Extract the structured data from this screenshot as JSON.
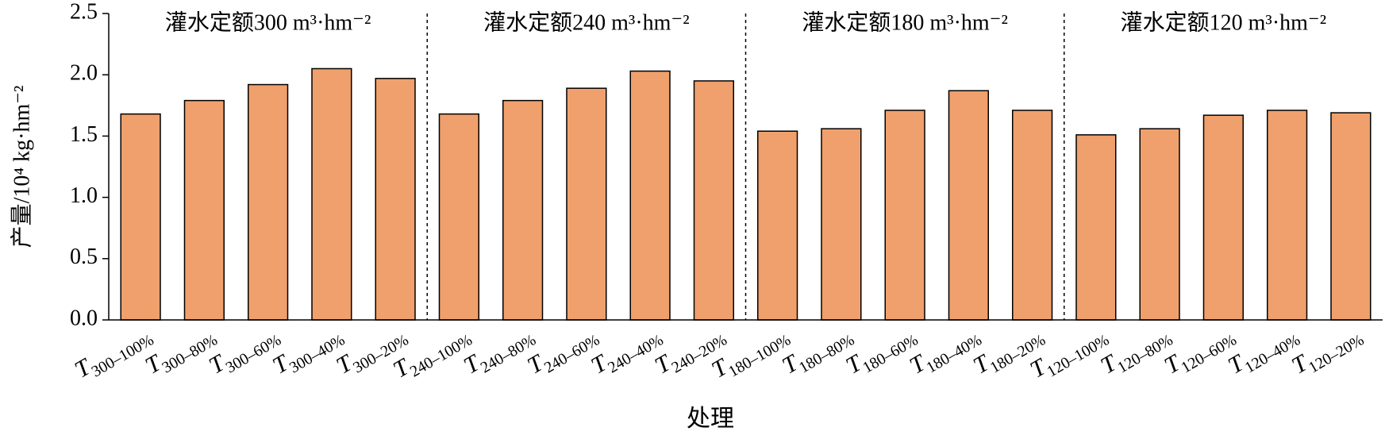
{
  "chart_data": {
    "type": "bar",
    "annotations": [
      "灌水定额300 m³·hm⁻²",
      "灌水定额240 m³·hm⁻²",
      "灌水定额180 m³·hm⁻²",
      "灌水定额120 m³·hm⁻²"
    ],
    "categories": [
      "T300–100%",
      "T300–80%",
      "T300–60%",
      "T300–40%",
      "T300–20%",
      "T240–100%",
      "T240–80%",
      "T240–60%",
      "T240–40%",
      "T240–20%",
      "T180–100%",
      "T180–80%",
      "T180–60%",
      "T180–40%",
      "T180–20%",
      "T120–100%",
      "T120–80%",
      "T120–60%",
      "T120–40%",
      "T120–20%"
    ],
    "values": [
      1.68,
      1.79,
      1.92,
      2.05,
      1.97,
      1.68,
      1.79,
      1.89,
      2.03,
      1.95,
      1.54,
      1.56,
      1.71,
      1.87,
      1.71,
      1.51,
      1.56,
      1.67,
      1.71,
      1.69
    ],
    "color": "#f0a06c",
    "xlabel": "处理",
    "ylabel": "产量/10⁴ kg·hm⁻²",
    "ylim": [
      0,
      2.5
    ],
    "yticks": [
      {
        "value": 0,
        "label": "0.0"
      },
      {
        "value": 0.5,
        "label": "0.5"
      },
      {
        "value": 1,
        "label": "1.0"
      },
      {
        "value": 1.5,
        "label": "1.5"
      },
      {
        "value": 2,
        "label": "2.0"
      },
      {
        "value": 2.5,
        "label": "2.5"
      }
    ],
    "grid": false
  }
}
